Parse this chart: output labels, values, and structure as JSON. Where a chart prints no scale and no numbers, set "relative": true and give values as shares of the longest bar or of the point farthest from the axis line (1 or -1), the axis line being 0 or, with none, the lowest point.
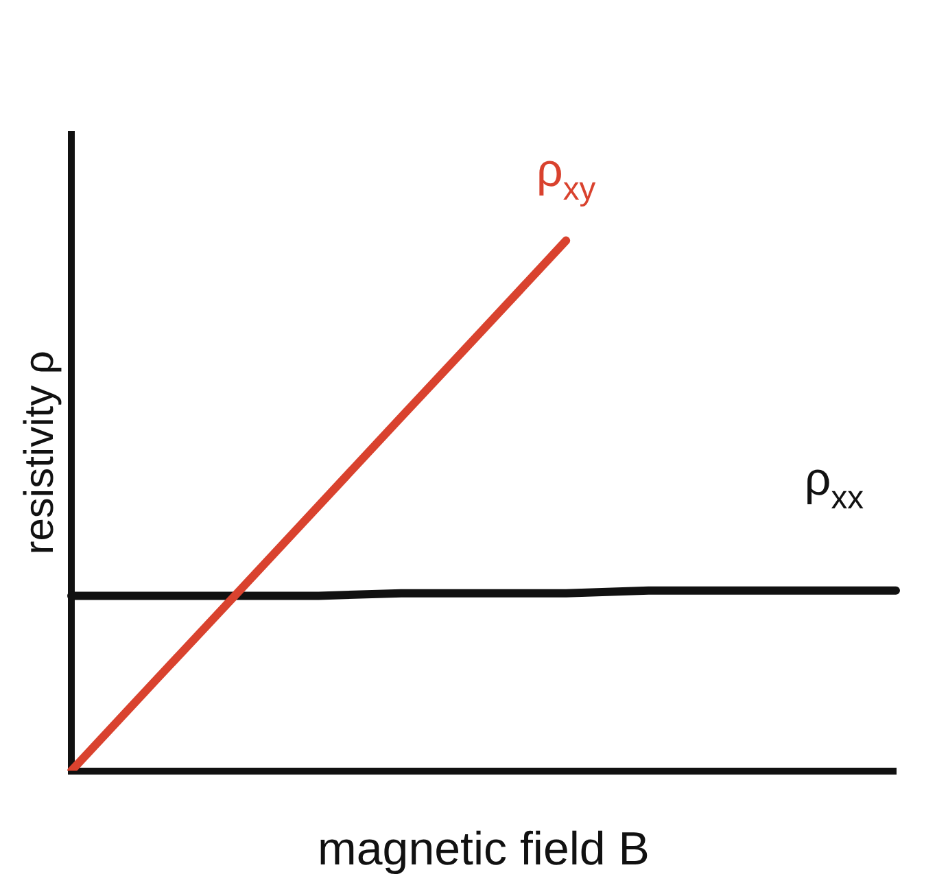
{
  "chart_data": {
    "type": "line",
    "relative": true,
    "xlabel": "magnetic field B",
    "ylabel": "resistivity ρ",
    "categories": [
      null,
      null,
      null,
      null,
      null,
      null,
      null,
      null,
      null,
      null,
      null
    ],
    "grid": false,
    "legend": false,
    "marker": "none",
    "line_style": "solid",
    "series": [
      {
        "name": "ρ$_{xy}$",
        "color": "#d9422e",
        "values": [
          0,
          0.167,
          0.333,
          0.5,
          0.667,
          0.833,
          1,
          null,
          null,
          null,
          null
        ]
      },
      {
        "name": "ρ$_{xx}$",
        "color": "#111111",
        "values": [
          0.33,
          0.33,
          0.33,
          0.33,
          0.335,
          0.335,
          0.335,
          0.34,
          0.34,
          0.34,
          0.34
        ]
      }
    ]
  }
}
